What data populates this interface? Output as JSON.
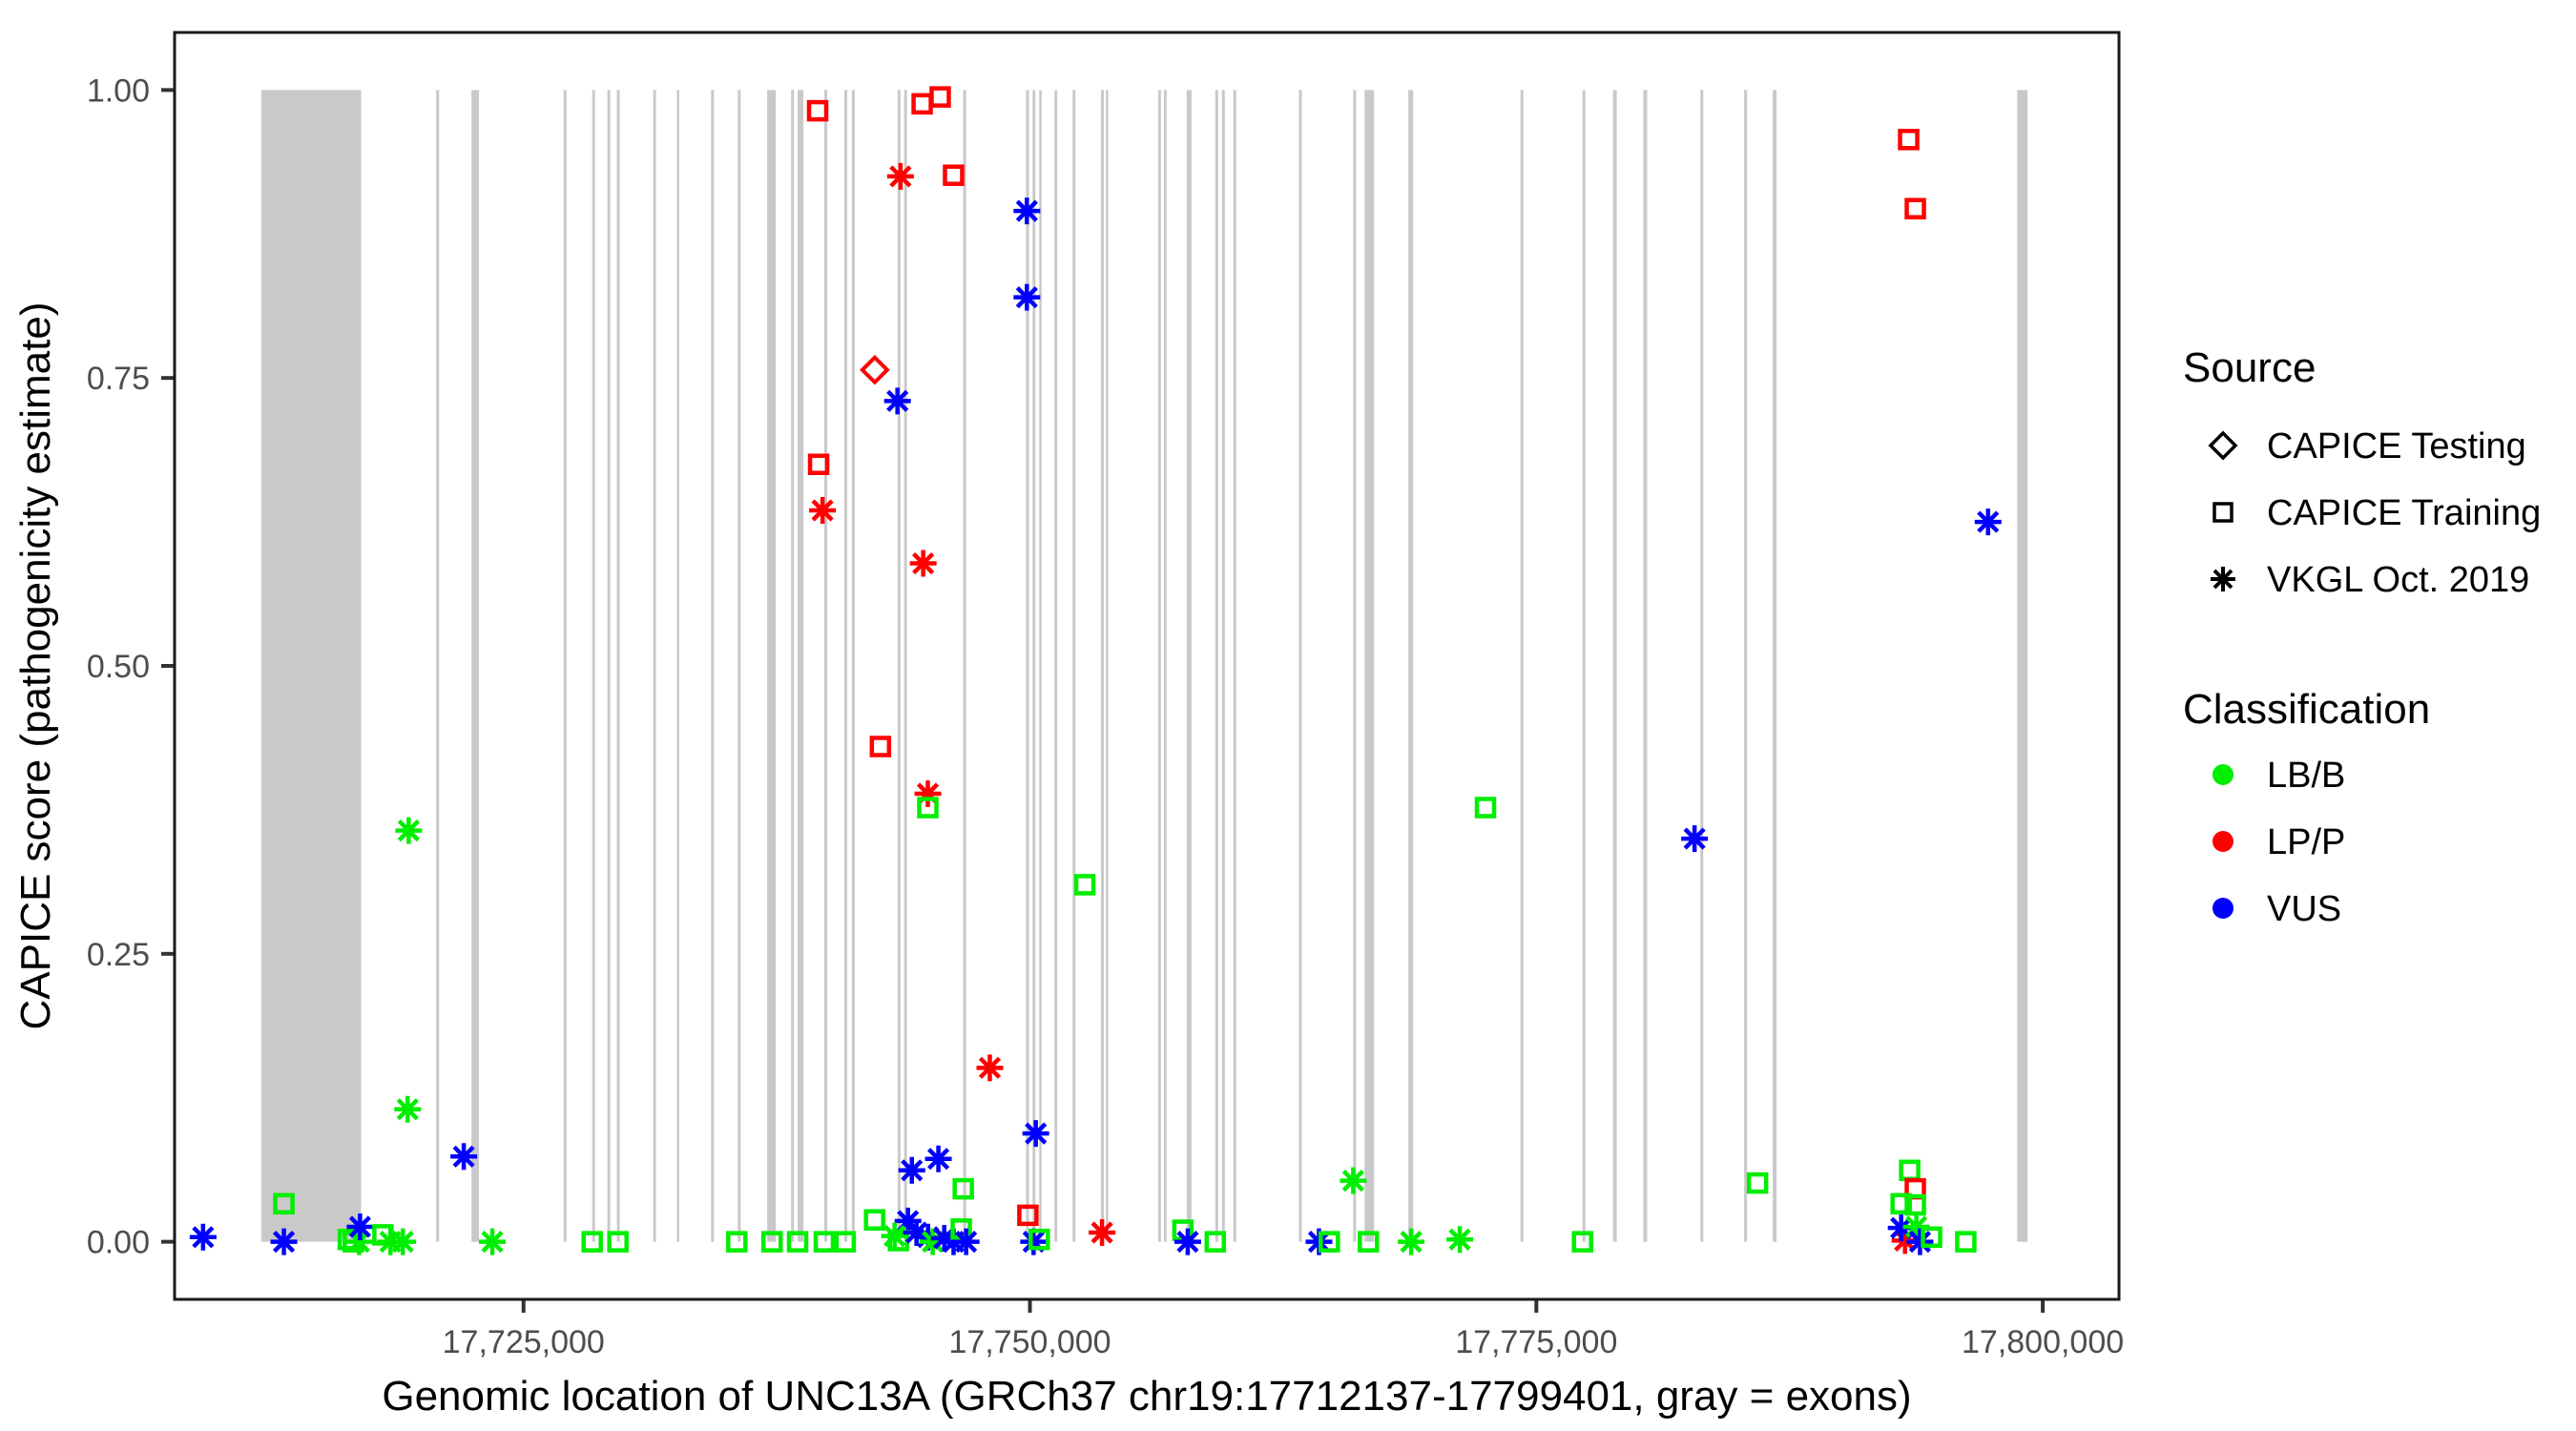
{
  "chart_data": {
    "type": "scatter",
    "xlabel": "Genomic location of UNC13A (GRCh37 chr19:17712137-17799401, gray = exons)",
    "ylabel": "CAPICE score (pathogenicity estimate)",
    "x_domain": [
      17707774,
      17803764
    ],
    "y_domain": [
      -0.05,
      1.05
    ],
    "x_ticks": [
      {
        "value": 17725000,
        "label": "17,725,000"
      },
      {
        "value": 17750000,
        "label": "17,750,000"
      },
      {
        "value": 17775000,
        "label": "17,775,000"
      },
      {
        "value": 17800000,
        "label": "17,800,000"
      }
    ],
    "y_ticks": [
      {
        "value": 0.0,
        "label": "0.00"
      },
      {
        "value": 0.25,
        "label": "0.25"
      },
      {
        "value": 0.5,
        "label": "0.50"
      },
      {
        "value": 0.75,
        "label": "0.75"
      },
      {
        "value": 1.0,
        "label": "1.00"
      }
    ],
    "exon_color": "#C9C9C9",
    "exon_span": [
      0.0,
      1.0
    ],
    "exons": [
      [
        17712050,
        17716980
      ],
      [
        17720690,
        17720830
      ],
      [
        17722430,
        17722800
      ],
      [
        17726980,
        17727120
      ],
      [
        17728390,
        17728530
      ],
      [
        17729140,
        17729280
      ],
      [
        17729610,
        17729750
      ],
      [
        17731400,
        17731540
      ],
      [
        17732570,
        17732670
      ],
      [
        17734260,
        17734400
      ],
      [
        17735580,
        17735720
      ],
      [
        17737030,
        17737450
      ],
      [
        17738210,
        17738350
      ],
      [
        17738530,
        17738820
      ],
      [
        17739850,
        17739990
      ],
      [
        17740840,
        17740980
      ],
      [
        17741210,
        17741350
      ],
      [
        17743470,
        17743610
      ],
      [
        17743790,
        17743930
      ],
      [
        17746710,
        17746850
      ],
      [
        17749810,
        17749950
      ],
      [
        17750130,
        17750270
      ],
      [
        17750460,
        17750560
      ],
      [
        17751210,
        17751350
      ],
      [
        17752110,
        17752250
      ],
      [
        17753510,
        17753650
      ],
      [
        17753750,
        17753850
      ],
      [
        17756330,
        17756470
      ],
      [
        17756610,
        17756750
      ],
      [
        17757740,
        17757980
      ],
      [
        17759150,
        17759290
      ],
      [
        17759480,
        17759620
      ],
      [
        17760040,
        17760180
      ],
      [
        17763280,
        17763420
      ],
      [
        17765960,
        17766100
      ],
      [
        17766520,
        17766990
      ],
      [
        17768680,
        17768920
      ],
      [
        17774220,
        17774360
      ],
      [
        17777280,
        17777420
      ],
      [
        17778780,
        17778970
      ],
      [
        17780280,
        17780470
      ],
      [
        17783100,
        17783240
      ],
      [
        17785260,
        17785400
      ],
      [
        17786670,
        17786860
      ],
      [
        17798740,
        17799250
      ]
    ],
    "legend": {
      "source": {
        "title": "Source",
        "items": [
          {
            "label": "CAPICE Testing",
            "shape": "diamond"
          },
          {
            "label": "CAPICE Training",
            "shape": "square"
          },
          {
            "label": "VKGL Oct. 2019",
            "shape": "asterisk"
          }
        ]
      },
      "classification": {
        "title": "Classification",
        "items": [
          {
            "label": "LB/B",
            "color": "#00EE00"
          },
          {
            "label": "LP/P",
            "color": "#FF0000"
          },
          {
            "label": "VUS",
            "color": "#0000FF"
          }
        ]
      }
    },
    "class_colors": {
      "LB/B": "#00EE00",
      "LP/P": "#FF0000",
      "VUS": "#0000FF"
    },
    "source_shapes": {
      "CAPICE Testing": "diamond",
      "CAPICE Training": "square",
      "VKGL Oct. 2019": "asterisk"
    },
    "points": [
      {
        "g": 17709180,
        "score": 0.004,
        "source": "VKGL Oct. 2019",
        "class": "VUS"
      },
      {
        "g": 17713170,
        "score": 0.033,
        "source": "CAPICE Training",
        "class": "LB/B"
      },
      {
        "g": 17713170,
        "score": 0.0,
        "source": "VKGL Oct. 2019",
        "class": "VUS"
      },
      {
        "g": 17716350,
        "score": 0.002,
        "source": "CAPICE Training",
        "class": "LB/B"
      },
      {
        "g": 17716600,
        "score": 0.0,
        "source": "CAPICE Training",
        "class": "LB/B"
      },
      {
        "g": 17716880,
        "score": 0.0,
        "source": "VKGL Oct. 2019",
        "class": "LB/B"
      },
      {
        "g": 17716930,
        "score": 0.013,
        "source": "VKGL Oct. 2019",
        "class": "VUS"
      },
      {
        "g": 17718060,
        "score": 0.006,
        "source": "CAPICE Training",
        "class": "LB/B"
      },
      {
        "g": 17718430,
        "score": 0.0,
        "source": "VKGL Oct. 2019",
        "class": "LB/B"
      },
      {
        "g": 17719040,
        "score": 0.0,
        "source": "VKGL Oct. 2019",
        "class": "LB/B"
      },
      {
        "g": 17719330,
        "score": 0.357,
        "source": "VKGL Oct. 2019",
        "class": "LB/B"
      },
      {
        "g": 17719280,
        "score": 0.115,
        "source": "VKGL Oct. 2019",
        "class": "LB/B"
      },
      {
        "g": 17722050,
        "score": 0.074,
        "source": "VKGL Oct. 2019",
        "class": "VUS"
      },
      {
        "g": 17723460,
        "score": 0.0,
        "source": "VKGL Oct. 2019",
        "class": "LB/B"
      },
      {
        "g": 17728390,
        "score": 0.0,
        "source": "CAPICE Training",
        "class": "LB/B"
      },
      {
        "g": 17729660,
        "score": 0.0,
        "source": "CAPICE Training",
        "class": "LB/B"
      },
      {
        "g": 17735530,
        "score": 0.0,
        "source": "CAPICE Training",
        "class": "LB/B"
      },
      {
        "g": 17737270,
        "score": 0.0,
        "source": "CAPICE Training",
        "class": "LB/B"
      },
      {
        "g": 17738530,
        "score": 0.0,
        "source": "CAPICE Training",
        "class": "LB/B"
      },
      {
        "g": 17739850,
        "score": 0.0,
        "source": "CAPICE Training",
        "class": "LB/B"
      },
      {
        "g": 17740880,
        "score": 0.0,
        "source": "CAPICE Training",
        "class": "LB/B"
      },
      {
        "g": 17739520,
        "score": 0.982,
        "source": "CAPICE Training",
        "class": "LP/P"
      },
      {
        "g": 17739570,
        "score": 0.675,
        "source": "CAPICE Training",
        "class": "LP/P"
      },
      {
        "g": 17739760,
        "score": 0.635,
        "source": "VKGL Oct. 2019",
        "class": "LP/P"
      },
      {
        "g": 17742340,
        "score": 0.757,
        "source": "CAPICE Testing",
        "class": "LP/P"
      },
      {
        "g": 17742620,
        "score": 0.43,
        "source": "CAPICE Training",
        "class": "LP/P"
      },
      {
        "g": 17743460,
        "score": 0.73,
        "source": "VKGL Oct. 2019",
        "class": "VUS"
      },
      {
        "g": 17743610,
        "score": 0.925,
        "source": "VKGL Oct. 2019",
        "class": "LP/P"
      },
      {
        "g": 17744680,
        "score": 0.988,
        "source": "CAPICE Training",
        "class": "LP/P"
      },
      {
        "g": 17745570,
        "score": 0.994,
        "source": "CAPICE Training",
        "class": "LP/P"
      },
      {
        "g": 17746230,
        "score": 0.926,
        "source": "CAPICE Training",
        "class": "LP/P"
      },
      {
        "g": 17744730,
        "score": 0.589,
        "source": "VKGL Oct. 2019",
        "class": "LP/P"
      },
      {
        "g": 17744960,
        "score": 0.389,
        "source": "VKGL Oct. 2019",
        "class": "LP/P"
      },
      {
        "g": 17744960,
        "score": 0.377,
        "source": "CAPICE Training",
        "class": "LB/B"
      },
      {
        "g": 17748020,
        "score": 0.151,
        "source": "VKGL Oct. 2019",
        "class": "LP/P"
      },
      {
        "g": 17752710,
        "score": 0.31,
        "source": "CAPICE Training",
        "class": "LB/B"
      },
      {
        "g": 17749850,
        "score": 0.895,
        "source": "VKGL Oct. 2019",
        "class": "VUS"
      },
      {
        "g": 17749850,
        "score": 0.82,
        "source": "VKGL Oct. 2019",
        "class": "VUS"
      },
      {
        "g": 17750290,
        "score": 0.094,
        "source": "VKGL Oct. 2019",
        "class": "VUS"
      },
      {
        "g": 17745480,
        "score": 0.072,
        "source": "VKGL Oct. 2019",
        "class": "VUS"
      },
      {
        "g": 17744170,
        "score": 0.062,
        "source": "VKGL Oct. 2019",
        "class": "VUS"
      },
      {
        "g": 17746710,
        "score": 0.046,
        "source": "CAPICE Training",
        "class": "LB/B"
      },
      {
        "g": 17742330,
        "score": 0.019,
        "source": "CAPICE Training",
        "class": "LB/B"
      },
      {
        "g": 17743980,
        "score": 0.018,
        "source": "VKGL Oct. 2019",
        "class": "VUS"
      },
      {
        "g": 17743320,
        "score": 0.005,
        "source": "VKGL Oct. 2019",
        "class": "LB/B"
      },
      {
        "g": 17743510,
        "score": 0.001,
        "source": "CAPICE Training",
        "class": "LB/B"
      },
      {
        "g": 17744400,
        "score": 0.008,
        "source": "VKGL Oct. 2019",
        "class": "VUS"
      },
      {
        "g": 17744970,
        "score": 0.004,
        "source": "VKGL Oct. 2019",
        "class": "VUS"
      },
      {
        "g": 17745200,
        "score": 0.0,
        "source": "VKGL Oct. 2019",
        "class": "LB/B"
      },
      {
        "g": 17745770,
        "score": 0.003,
        "source": "VKGL Oct. 2019",
        "class": "VUS"
      },
      {
        "g": 17746230,
        "score": 0.0,
        "source": "VKGL Oct. 2019",
        "class": "VUS"
      },
      {
        "g": 17746610,
        "score": 0.011,
        "source": "CAPICE Training",
        "class": "LB/B"
      },
      {
        "g": 17746850,
        "score": 0.0,
        "source": "VKGL Oct. 2019",
        "class": "VUS"
      },
      {
        "g": 17749900,
        "score": 0.023,
        "source": "CAPICE Training",
        "class": "LP/P"
      },
      {
        "g": 17750180,
        "score": 0.0,
        "source": "VKGL Oct. 2019",
        "class": "VUS"
      },
      {
        "g": 17750460,
        "score": 0.002,
        "source": "CAPICE Training",
        "class": "LB/B"
      },
      {
        "g": 17753560,
        "score": 0.008,
        "source": "VKGL Oct. 2019",
        "class": "LP/P"
      },
      {
        "g": 17757550,
        "score": 0.01,
        "source": "CAPICE Training",
        "class": "LB/B"
      },
      {
        "g": 17757790,
        "score": 0.0,
        "source": "VKGL Oct. 2019",
        "class": "VUS"
      },
      {
        "g": 17759150,
        "score": 0.0,
        "source": "CAPICE Training",
        "class": "LB/B"
      },
      {
        "g": 17764270,
        "score": 0.0,
        "source": "VKGL Oct. 2019",
        "class": "VUS"
      },
      {
        "g": 17764780,
        "score": 0.0,
        "source": "CAPICE Training",
        "class": "LB/B"
      },
      {
        "g": 17765960,
        "score": 0.053,
        "source": "VKGL Oct. 2019",
        "class": "LB/B"
      },
      {
        "g": 17766710,
        "score": 0.0,
        "source": "CAPICE Training",
        "class": "LB/B"
      },
      {
        "g": 17768820,
        "score": 0.0,
        "source": "VKGL Oct. 2019",
        "class": "LB/B"
      },
      {
        "g": 17771220,
        "score": 0.002,
        "source": "VKGL Oct. 2019",
        "class": "LB/B"
      },
      {
        "g": 17777280,
        "score": 0.0,
        "source": "CAPICE Training",
        "class": "LB/B"
      },
      {
        "g": 17772490,
        "score": 0.377,
        "source": "CAPICE Training",
        "class": "LB/B"
      },
      {
        "g": 17782810,
        "score": 0.35,
        "source": "VKGL Oct. 2019",
        "class": "VUS"
      },
      {
        "g": 17785920,
        "score": 0.051,
        "source": "CAPICE Training",
        "class": "LB/B"
      },
      {
        "g": 17793380,
        "score": 0.957,
        "source": "CAPICE Training",
        "class": "LP/P"
      },
      {
        "g": 17793710,
        "score": 0.897,
        "source": "CAPICE Training",
        "class": "LP/P"
      },
      {
        "g": 17797300,
        "score": 0.625,
        "source": "VKGL Oct. 2019",
        "class": "VUS"
      },
      {
        "g": 17793430,
        "score": 0.062,
        "source": "CAPICE Training",
        "class": "LB/B"
      },
      {
        "g": 17793710,
        "score": 0.046,
        "source": "CAPICE Training",
        "class": "LP/P"
      },
      {
        "g": 17793010,
        "score": 0.033,
        "source": "CAPICE Training",
        "class": "LB/B"
      },
      {
        "g": 17793710,
        "score": 0.032,
        "source": "CAPICE Training",
        "class": "LB/B"
      },
      {
        "g": 17793200,
        "score": 0.001,
        "source": "VKGL Oct. 2019",
        "class": "LP/P"
      },
      {
        "g": 17793010,
        "score": 0.012,
        "source": "VKGL Oct. 2019",
        "class": "VUS"
      },
      {
        "g": 17793760,
        "score": 0.013,
        "source": "VKGL Oct. 2019",
        "class": "LB/B"
      },
      {
        "g": 17793940,
        "score": 0.0,
        "source": "VKGL Oct. 2019",
        "class": "VUS"
      },
      {
        "g": 17794510,
        "score": 0.004,
        "source": "CAPICE Training",
        "class": "LB/B"
      },
      {
        "g": 17796200,
        "score": 0.0,
        "source": "CAPICE Training",
        "class": "LB/B"
      }
    ]
  }
}
